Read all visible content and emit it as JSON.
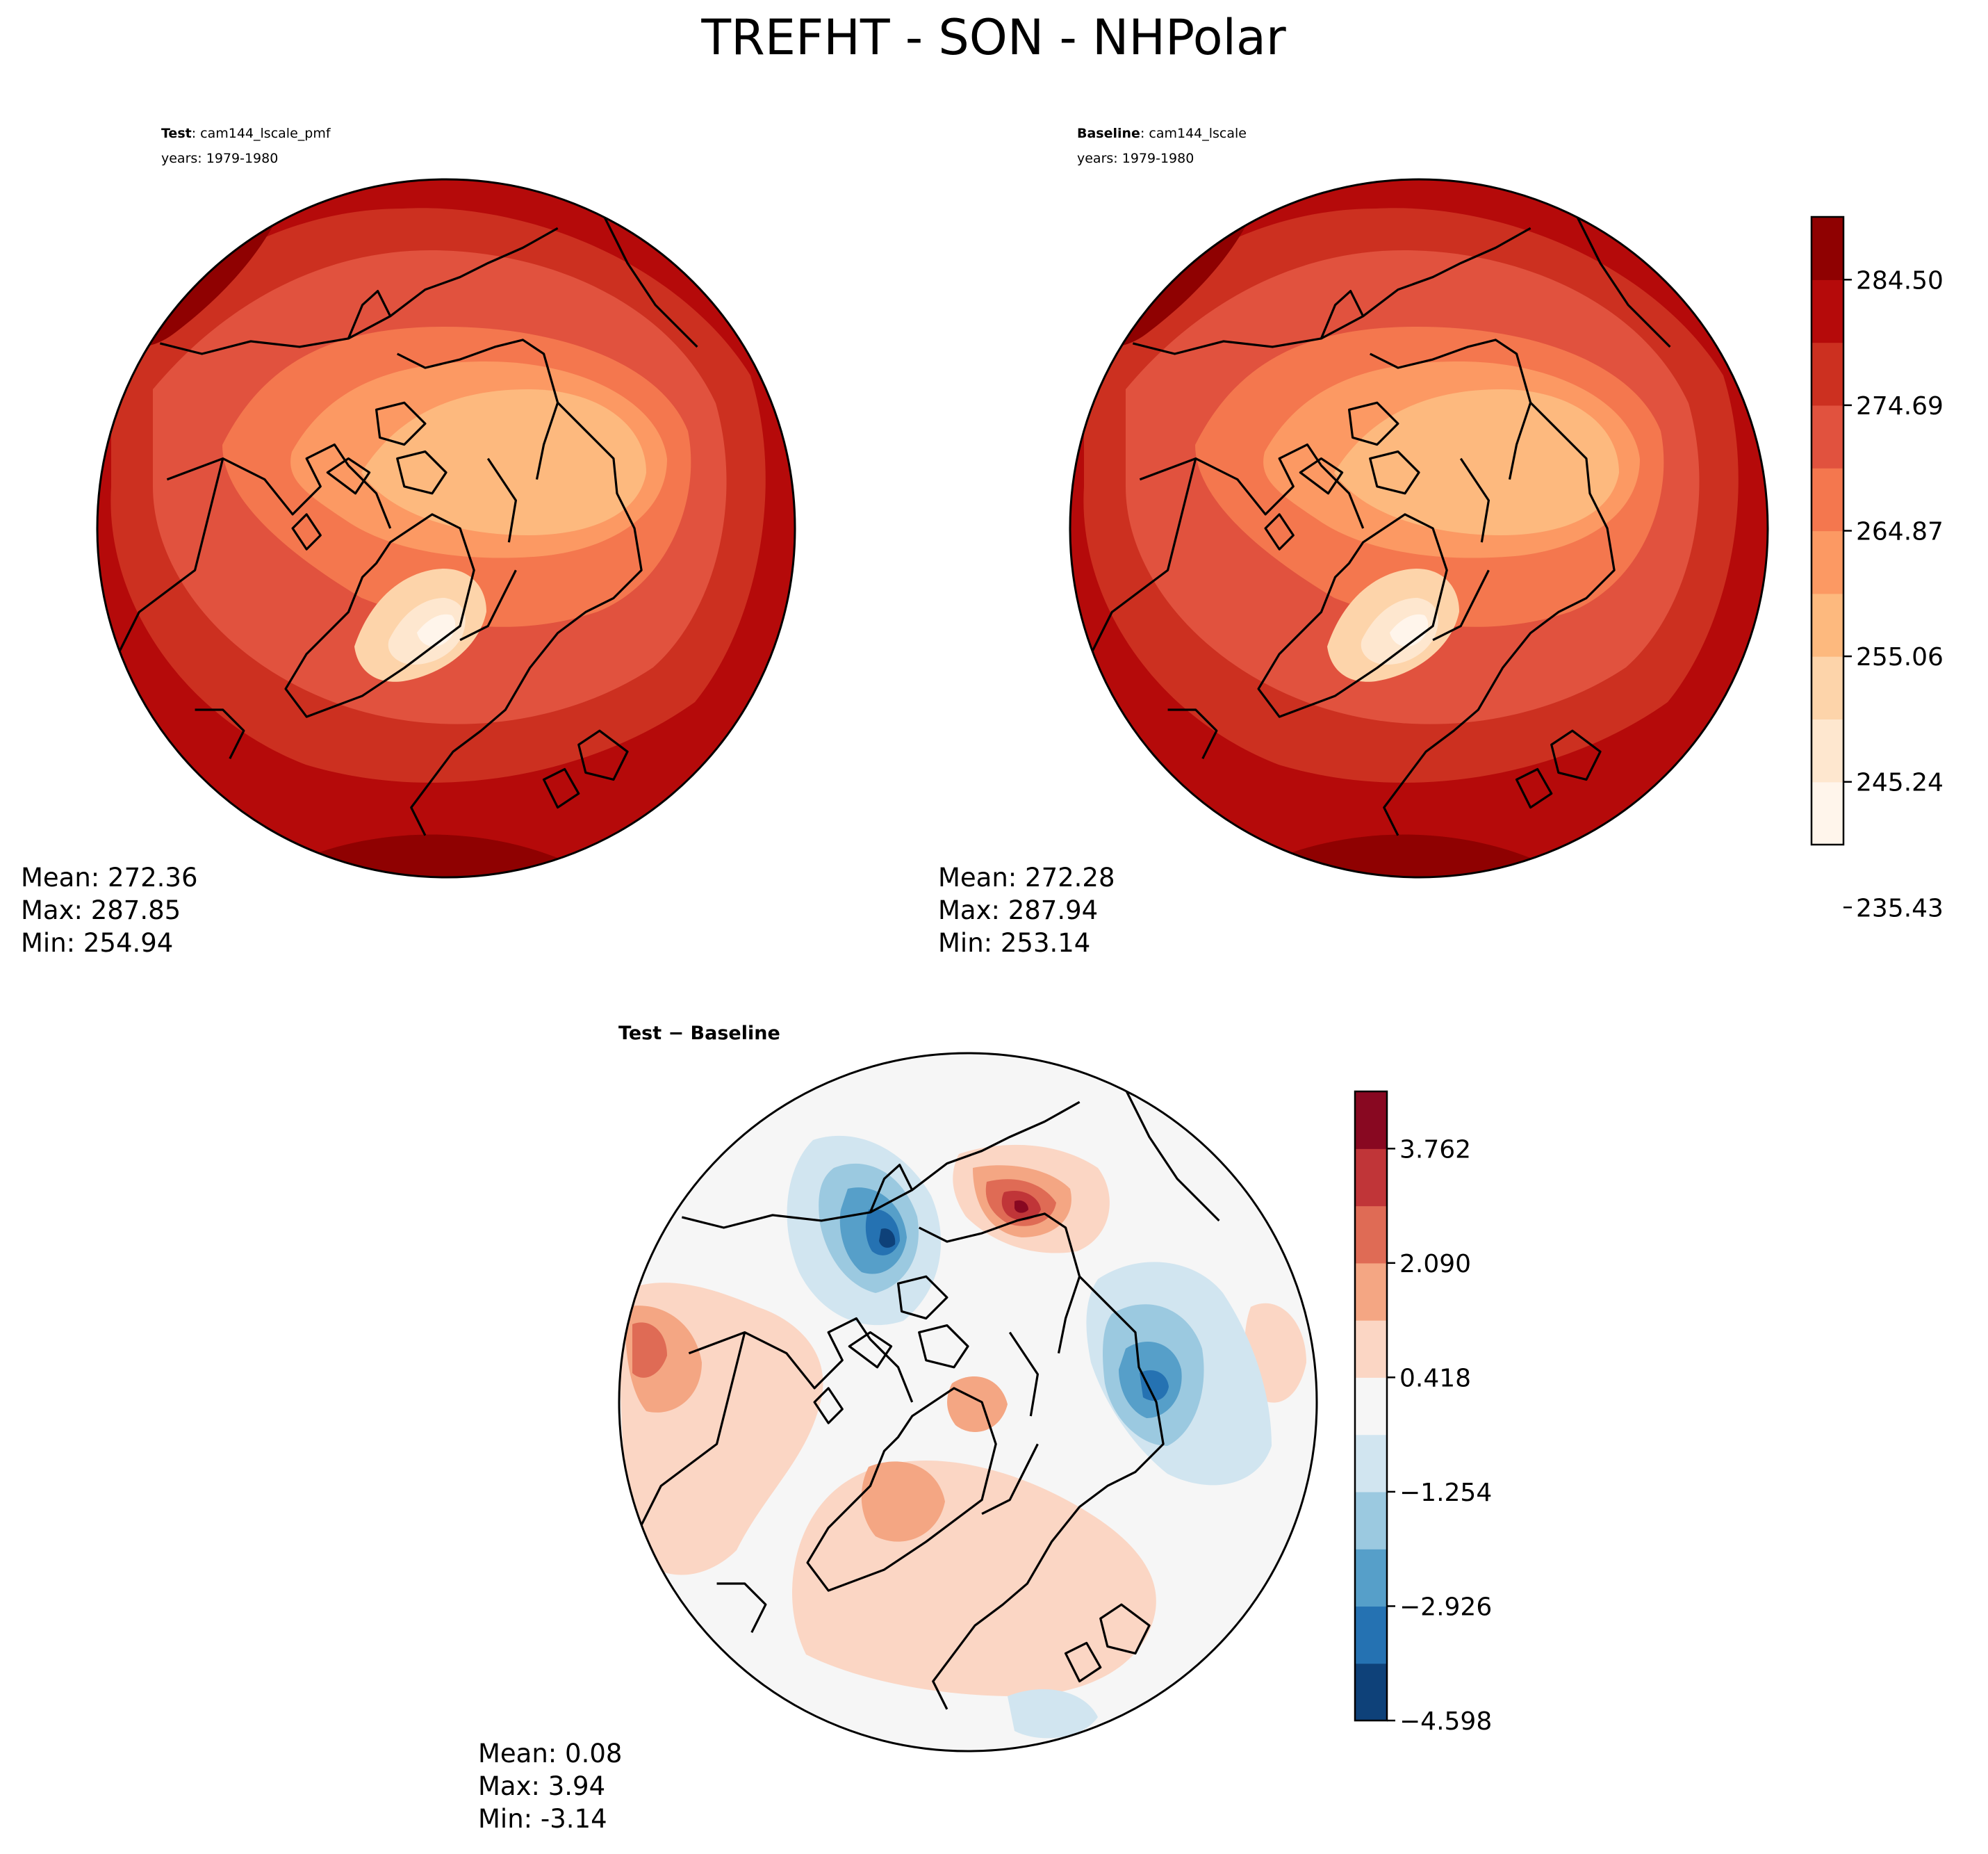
{
  "title": "TREFHT - SON - NHPolar",
  "colors": {
    "reds": [
      "#fff5eb",
      "#fee7cf",
      "#fdd4aa",
      "#fdb97e",
      "#fc9963",
      "#f4774e",
      "#e1523e",
      "#cc3020",
      "#b50a0a",
      "#8f0101"
    ],
    "diverging": [
      "#0e4179",
      "#2572b2",
      "#569fc9",
      "#9bc9e0",
      "#d1e5f0",
      "#f6f6f6",
      "#fbd6c4",
      "#f4a683",
      "#df6b55",
      "#c03538",
      "#880821"
    ],
    "coastline": "#000000"
  },
  "panels": {
    "test": {
      "label_bold": "Test",
      "label_rest": ": cam144_lscale_pmf",
      "years": "years: 1979-1980",
      "mean": "Mean: 272.36",
      "max": "Max: 287.85",
      "min": "Min: 254.94"
    },
    "baseline": {
      "label_bold": "Baseline",
      "label_rest": ": cam144_lscale",
      "years": "years: 1979-1980",
      "mean": "Mean: 272.28",
      "max": "Max: 287.94",
      "min": "Min: 253.14"
    },
    "diff": {
      "label": "Test − Baseline",
      "mean": "Mean:  0.08",
      "max": "Max:  3.94",
      "min": "Min: -3.14"
    }
  },
  "chart_data": [
    {
      "type": "heatmap",
      "panel": "test",
      "projection": "north-polar-stereographic",
      "field_range": [
        254.94,
        287.85
      ]
    },
    {
      "type": "heatmap",
      "panel": "baseline",
      "projection": "north-polar-stereographic",
      "field_range": [
        253.14,
        287.94
      ]
    },
    {
      "type": "heatmap",
      "panel": "diff",
      "projection": "north-polar-stereographic",
      "field_range": [
        -3.14,
        3.94
      ]
    }
  ],
  "colorbars": {
    "absolute": {
      "ticks": [
        "284.50",
        "274.69",
        "264.87",
        "255.06",
        "245.24",
        "235.43"
      ],
      "levels": 10
    },
    "diff": {
      "ticks": [
        "3.762",
        "2.090",
        "0.418",
        "−1.254",
        "−2.926",
        "−4.598"
      ],
      "levels": 11
    }
  }
}
